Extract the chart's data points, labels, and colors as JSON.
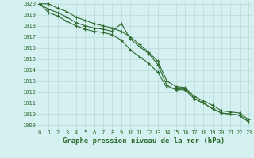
{
  "xlabel": "Graphe pression niveau de la mer (hPa)",
  "x": [
    0,
    1,
    2,
    3,
    4,
    5,
    6,
    7,
    8,
    9,
    10,
    11,
    12,
    13,
    14,
    15,
    16,
    17,
    18,
    19,
    20,
    21,
    22,
    23
  ],
  "line1": [
    1020.0,
    1019.5,
    1019.2,
    1018.8,
    1018.3,
    1018.0,
    1017.8,
    1017.7,
    1017.5,
    1018.2,
    1016.8,
    1016.1,
    1015.5,
    1014.5,
    1012.6,
    1012.2,
    1012.2,
    1011.4,
    1011.0,
    1010.5,
    1010.1,
    1010.0,
    1009.9,
    1009.3
  ],
  "line2": [
    1020.0,
    1019.2,
    1018.9,
    1018.4,
    1018.0,
    1017.7,
    1017.5,
    1017.4,
    1017.2,
    1016.7,
    1015.8,
    1015.2,
    1014.6,
    1013.8,
    1012.4,
    1012.3,
    1012.3,
    1011.4,
    1011.0,
    1010.5,
    1010.1,
    1010.0,
    1009.9,
    1009.3
  ],
  "line3": [
    1020.0,
    1020.0,
    1019.6,
    1019.3,
    1018.8,
    1018.5,
    1018.2,
    1018.0,
    1017.8,
    1017.5,
    1017.0,
    1016.3,
    1015.6,
    1014.8,
    1013.0,
    1012.5,
    1012.4,
    1011.6,
    1011.2,
    1010.8,
    1010.3,
    1010.2,
    1010.1,
    1009.5
  ],
  "line_color": "#2d6a2d",
  "bg_color": "#d4f0f0",
  "grid_color": "#b8dada",
  "label_color": "#2d6a2d",
  "ylim_min": 1009,
  "ylim_max": 1020,
  "yticks": [
    1009,
    1010,
    1011,
    1012,
    1013,
    1014,
    1015,
    1016,
    1017,
    1018,
    1019,
    1020
  ],
  "xticks": [
    0,
    1,
    2,
    3,
    4,
    5,
    6,
    7,
    8,
    9,
    10,
    11,
    12,
    13,
    14,
    15,
    16,
    17,
    18,
    19,
    20,
    21,
    22,
    23
  ],
  "marker": "+",
  "linewidth": 0.8,
  "fontsize_label": 6.5,
  "fontsize_tick": 5.0
}
